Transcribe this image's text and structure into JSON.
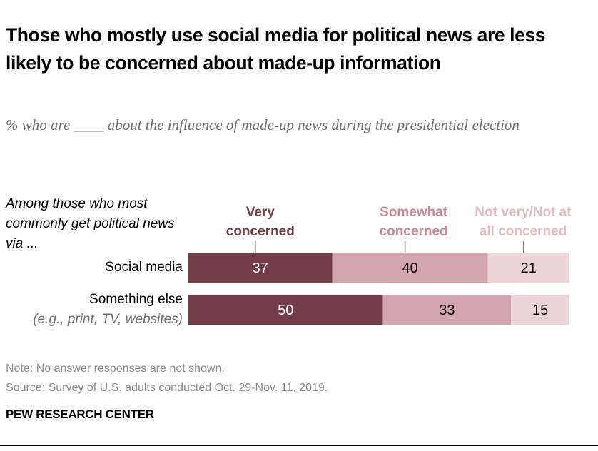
{
  "title": "Those who mostly use social media for political news are less likely to be concerned about made-up information",
  "subtitle": "% who are ____ about the influence of made-up news during the presidential election",
  "row_header": "Among those who most commonly get political news via ...",
  "note": "Note: No answer responses are not shown.",
  "source": "Source: Survey of U.S. adults conducted Oct. 29-Nov. 11, 2019.",
  "brand": "PEW RESEARCH CENTER",
  "chart_data": {
    "type": "bar",
    "orientation": "horizontal",
    "stacked": true,
    "categories": [
      "Social media",
      "Something else"
    ],
    "category_subtitles": [
      "",
      "(e.g., print, TV, websites)"
    ],
    "series": [
      {
        "name": "Very concerned",
        "values": [
          37,
          50
        ],
        "color": "#733d47"
      },
      {
        "name": "Somewhat concerned",
        "values": [
          40,
          33
        ],
        "color": "#d3a6ae"
      },
      {
        "name": "Not very/Not at all concerned",
        "values": [
          21,
          15
        ],
        "color": "#ecd3d8"
      }
    ],
    "legend_text_colors": [
      "#733d47",
      "#c98893",
      "#e2bcc3"
    ],
    "legend_placement": "top",
    "grid": false
  }
}
